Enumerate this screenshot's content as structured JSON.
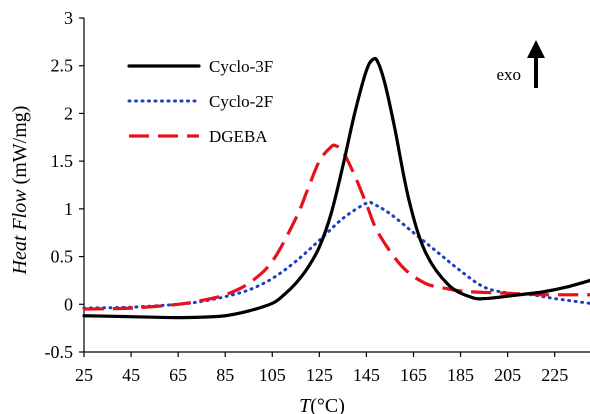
{
  "chart_data": {
    "type": "line",
    "xlabel_italic": "T",
    "xlabel_rest": "(°C)",
    "ylabel_italic": "Heat Flow",
    "ylabel_rest": "(mW/mg)",
    "xlim": [
      25,
      240
    ],
    "ylim": [
      -0.5,
      3
    ],
    "xticks": [
      25,
      45,
      65,
      85,
      105,
      125,
      145,
      165,
      185,
      205,
      225
    ],
    "xtick_labels": [
      "25",
      "45",
      "65",
      "85",
      "105",
      "125",
      "145",
      "165",
      "185",
      "205",
      "225"
    ],
    "yticks": [
      -0.5,
      0,
      0.5,
      1,
      1.5,
      2,
      2.5,
      3
    ],
    "ytick_labels": [
      "-0.5",
      "0",
      "0.5",
      "1",
      "1.5",
      "2",
      "2.5",
      "3"
    ],
    "grid": false,
    "legend_position": "top-left",
    "annotation": "exo",
    "annotation_arrow": "up",
    "series": [
      {
        "name": "Cyclo-3F",
        "color": "#000000",
        "style": "solid",
        "x": [
          25,
          45,
          65,
          75,
          85,
          95,
          105,
          110,
          115,
          120,
          125,
          130,
          135,
          140,
          145,
          148,
          150,
          153,
          157,
          163,
          170,
          180,
          190,
          195,
          200,
          210,
          220,
          230,
          240
        ],
        "y": [
          -0.12,
          -0.13,
          -0.14,
          -0.135,
          -0.12,
          -0.07,
          0.01,
          0.1,
          0.22,
          0.38,
          0.6,
          0.95,
          1.45,
          2.0,
          2.45,
          2.57,
          2.53,
          2.3,
          1.85,
          1.1,
          0.55,
          0.2,
          0.07,
          0.06,
          0.07,
          0.1,
          0.13,
          0.18,
          0.25
        ]
      },
      {
        "name": "Cyclo-2F",
        "color": "#1f3fbf",
        "style": "dotted",
        "x": [
          25,
          45,
          65,
          75,
          85,
          95,
          105,
          115,
          125,
          135,
          145,
          148,
          155,
          165,
          175,
          185,
          195,
          205,
          215,
          225,
          240
        ],
        "y": [
          -0.04,
          -0.03,
          0.0,
          0.03,
          0.08,
          0.15,
          0.27,
          0.45,
          0.67,
          0.9,
          1.06,
          1.05,
          0.95,
          0.75,
          0.55,
          0.35,
          0.18,
          0.12,
          0.1,
          0.06,
          0.01
        ]
      },
      {
        "name": "DGEBA",
        "color": "#e8101a",
        "style": "dashed",
        "x": [
          25,
          45,
          65,
          75,
          85,
          95,
          105,
          115,
          120,
          125,
          130,
          132,
          135,
          140,
          145,
          150,
          160,
          170,
          180,
          185,
          190,
          200,
          210,
          220,
          240
        ],
        "y": [
          -0.05,
          -0.04,
          0.0,
          0.04,
          0.1,
          0.22,
          0.45,
          0.9,
          1.2,
          1.5,
          1.65,
          1.66,
          1.6,
          1.35,
          1.05,
          0.75,
          0.4,
          0.22,
          0.16,
          0.14,
          0.13,
          0.12,
          0.11,
          0.1,
          0.1
        ]
      }
    ]
  }
}
